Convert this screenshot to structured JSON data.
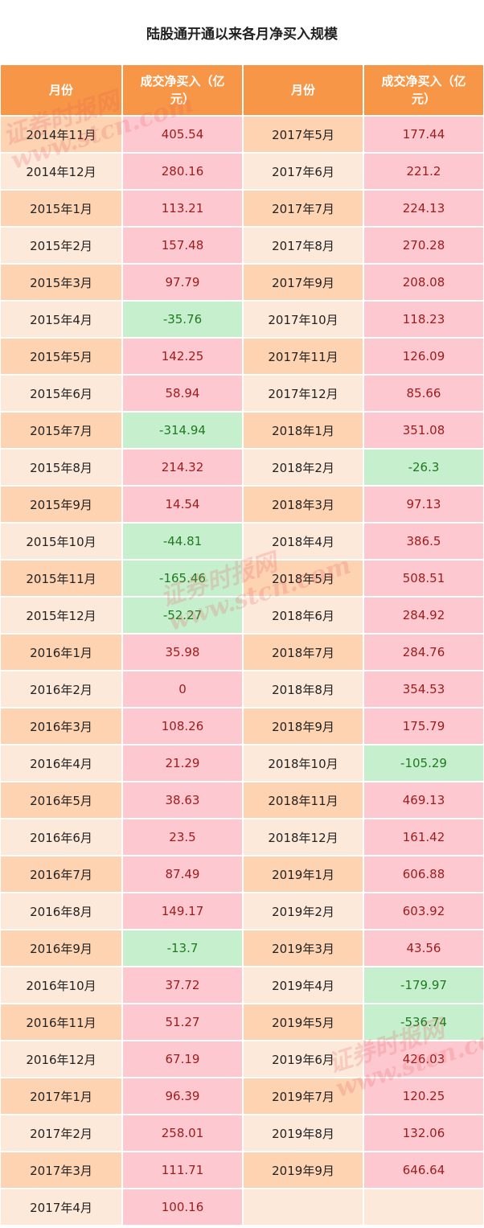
{
  "title": "陆股通开通以来各月净买入规模",
  "headers": [
    "月份",
    "成交净买入（亿元）",
    "月份",
    "成交净买入（亿元）"
  ],
  "watermark": [
    "证券时报网",
    "www.stcn.com"
  ],
  "colors": {
    "header": "#f79646",
    "positive_bg": "#fec8d0",
    "negative_bg": "#c6efce"
  },
  "rows": [
    {
      "m1": "2014年11月",
      "v1": "405.54",
      "m2": "2017年5月",
      "v2": "177.44"
    },
    {
      "m1": "2014年12月",
      "v1": "280.16",
      "m2": "2017年6月",
      "v2": "221.2"
    },
    {
      "m1": "2015年1月",
      "v1": "113.21",
      "m2": "2017年7月",
      "v2": "224.13"
    },
    {
      "m1": "2015年2月",
      "v1": "157.48",
      "m2": "2017年8月",
      "v2": "270.28"
    },
    {
      "m1": "2015年3月",
      "v1": "97.79",
      "m2": "2017年9月",
      "v2": "208.08"
    },
    {
      "m1": "2015年4月",
      "v1": "-35.76",
      "m2": "2017年10月",
      "v2": "118.23"
    },
    {
      "m1": "2015年5月",
      "v1": "142.25",
      "m2": "2017年11月",
      "v2": "126.09"
    },
    {
      "m1": "2015年6月",
      "v1": "58.94",
      "m2": "2017年12月",
      "v2": "85.66"
    },
    {
      "m1": "2015年7月",
      "v1": "-314.94",
      "m2": "2018年1月",
      "v2": "351.08"
    },
    {
      "m1": "2015年8月",
      "v1": "214.32",
      "m2": "2018年2月",
      "v2": "-26.3"
    },
    {
      "m1": "2015年9月",
      "v1": "14.54",
      "m2": "2018年3月",
      "v2": "97.13"
    },
    {
      "m1": "2015年10月",
      "v1": "-44.81",
      "m2": "2018年4月",
      "v2": "386.5"
    },
    {
      "m1": "2015年11月",
      "v1": "-165.46",
      "m2": "2018年5月",
      "v2": "508.51"
    },
    {
      "m1": "2015年12月",
      "v1": "-52.27",
      "m2": "2018年6月",
      "v2": "284.92"
    },
    {
      "m1": "2016年1月",
      "v1": "35.98",
      "m2": "2018年7月",
      "v2": "284.76"
    },
    {
      "m1": "2016年2月",
      "v1": "0",
      "m2": "2018年8月",
      "v2": "354.53"
    },
    {
      "m1": "2016年3月",
      "v1": "108.26",
      "m2": "2018年9月",
      "v2": "175.79"
    },
    {
      "m1": "2016年4月",
      "v1": "21.29",
      "m2": "2018年10月",
      "v2": "-105.29"
    },
    {
      "m1": "2016年5月",
      "v1": "38.63",
      "m2": "2018年11月",
      "v2": "469.13"
    },
    {
      "m1": "2016年6月",
      "v1": "23.5",
      "m2": "2018年12月",
      "v2": "161.42"
    },
    {
      "m1": "2016年7月",
      "v1": "87.49",
      "m2": "2019年1月",
      "v2": "606.88"
    },
    {
      "m1": "2016年8月",
      "v1": "149.17",
      "m2": "2019年2月",
      "v2": "603.92"
    },
    {
      "m1": "2016年9月",
      "v1": "-13.7",
      "m2": "2019年3月",
      "v2": "43.56"
    },
    {
      "m1": "2016年10月",
      "v1": "37.72",
      "m2": "2019年4月",
      "v2": "-179.97"
    },
    {
      "m1": "2016年11月",
      "v1": "51.27",
      "m2": "2019年5月",
      "v2": "-536.74"
    },
    {
      "m1": "2016年12月",
      "v1": "67.19",
      "m2": "2019年6月",
      "v2": "426.03"
    },
    {
      "m1": "2017年1月",
      "v1": "96.39",
      "m2": "2019年7月",
      "v2": "120.25"
    },
    {
      "m1": "2017年2月",
      "v1": "258.01",
      "m2": "2019年8月",
      "v2": "132.06"
    },
    {
      "m1": "2017年3月",
      "v1": "111.71",
      "m2": "2019年9月",
      "v2": "646.64"
    },
    {
      "m1": "2017年4月",
      "v1": "100.16",
      "m2": "",
      "v2": ""
    }
  ]
}
